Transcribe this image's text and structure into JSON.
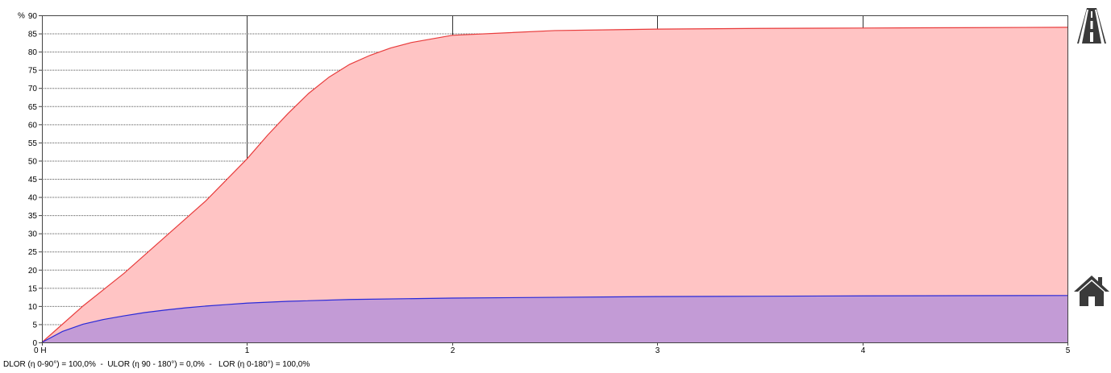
{
  "chart_data": {
    "type": "area",
    "y_unit_label": "%",
    "ylim": [
      0,
      90
    ],
    "xlim": [
      0,
      5
    ],
    "y_ticks": [
      0,
      5,
      10,
      15,
      20,
      25,
      30,
      35,
      40,
      45,
      50,
      55,
      60,
      65,
      70,
      75,
      80,
      85,
      90
    ],
    "x_ticks": [
      {
        "value": 0,
        "label": "0 H"
      },
      {
        "value": 1,
        "label": "1"
      },
      {
        "value": 2,
        "label": "2"
      },
      {
        "value": 3,
        "label": "3"
      },
      {
        "value": 4,
        "label": "4"
      },
      {
        "value": 5,
        "label": "5"
      }
    ],
    "grid": true,
    "series": [
      {
        "color": "#e83c3c",
        "fill": "#ffc4c4",
        "x": [
          0,
          0.2,
          0.4,
          0.6,
          0.8,
          1.0,
          1.1,
          1.2,
          1.3,
          1.4,
          1.5,
          1.6,
          1.7,
          1.8,
          1.9,
          2.0,
          2.5,
          3.0,
          3.5,
          4.0,
          4.5,
          5.0
        ],
        "values": [
          0,
          10,
          19,
          29,
          39,
          50.5,
          57,
          63,
          68.5,
          73,
          76.5,
          79,
          81,
          82.5,
          83.5,
          84.5,
          85.8,
          86.2,
          86.4,
          86.5,
          86.6,
          86.7
        ]
      },
      {
        "color": "#2a2ad8",
        "fill": "#c39bd6",
        "x": [
          0,
          0.1,
          0.2,
          0.3,
          0.4,
          0.5,
          0.6,
          0.7,
          0.8,
          0.9,
          1.0,
          1.2,
          1.5,
          2.0,
          2.5,
          3.0,
          3.5,
          4.0,
          4.5,
          5.0
        ],
        "values": [
          0,
          3,
          5,
          6.3,
          7.3,
          8.2,
          8.9,
          9.5,
          10,
          10.4,
          10.8,
          11.3,
          11.8,
          12.2,
          12.4,
          12.6,
          12.7,
          12.8,
          12.85,
          12.9
        ]
      }
    ]
  },
  "footer": {
    "text": "DLOR (η 0-90°) = 100,0%  -  ULOR (η 90 - 180°) = 0,0%  -   LOR (η 0-180°) = 100,0%"
  },
  "icons": {
    "top_icon": "road-icon",
    "bottom_icon": "house-icon"
  }
}
